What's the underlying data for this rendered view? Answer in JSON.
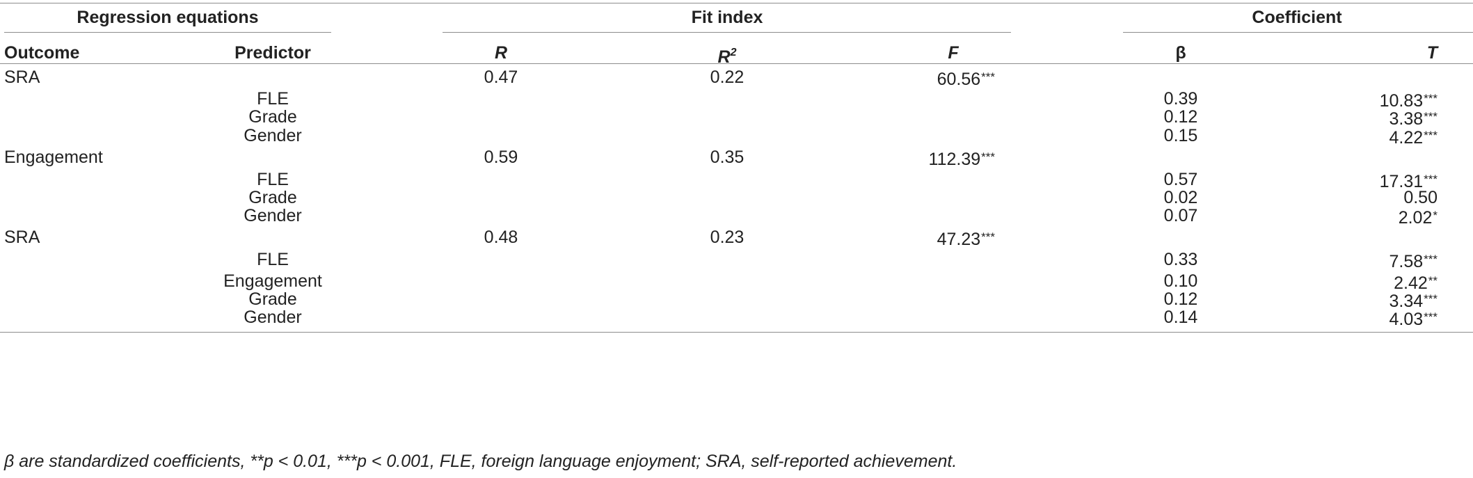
{
  "table": {
    "group_headers": {
      "regression_equations": "Regression equations",
      "fit_index": "Fit index",
      "coefficient": "Coefficient"
    },
    "column_headers": {
      "outcome": "Outcome",
      "predictor": "Predictor",
      "r": "R",
      "r2_base": "R",
      "r2_sup": "2",
      "f": "F",
      "beta": "β",
      "t": "T"
    },
    "rows": [
      {
        "outcome": "SRA",
        "predictor": "",
        "r": "0.47",
        "r2": "0.22",
        "f": "60.56",
        "f_sig": "***",
        "beta": "",
        "t": "",
        "t_sig": ""
      },
      {
        "outcome": "",
        "predictor": "FLE",
        "r": "",
        "r2": "",
        "f": "",
        "f_sig": "",
        "beta": "0.39",
        "t": "10.83",
        "t_sig": "***"
      },
      {
        "outcome": "",
        "predictor": "Grade",
        "r": "",
        "r2": "",
        "f": "",
        "f_sig": "",
        "beta": "0.12",
        "t": "3.38",
        "t_sig": "***"
      },
      {
        "outcome": "",
        "predictor": "Gender",
        "r": "",
        "r2": "",
        "f": "",
        "f_sig": "",
        "beta": "0.15",
        "t": "4.22",
        "t_sig": "***"
      },
      {
        "outcome": "Engagement",
        "predictor": "",
        "r": "0.59",
        "r2": "0.35",
        "f": "112.39",
        "f_sig": "***",
        "beta": "",
        "t": "",
        "t_sig": ""
      },
      {
        "outcome": "",
        "predictor": "FLE",
        "r": "",
        "r2": "",
        "f": "",
        "f_sig": "",
        "beta": "0.57",
        "t": "17.31",
        "t_sig": "***"
      },
      {
        "outcome": "",
        "predictor": "Grade",
        "r": "",
        "r2": "",
        "f": "",
        "f_sig": "",
        "beta": "0.02",
        "t": "0.50",
        "t_sig": ""
      },
      {
        "outcome": "",
        "predictor": "Gender",
        "r": "",
        "r2": "",
        "f": "",
        "f_sig": "",
        "beta": "0.07",
        "t": "2.02",
        "t_sig": "*"
      },
      {
        "outcome": "SRA",
        "predictor": "",
        "r": "0.48",
        "r2": "0.23",
        "f": "47.23",
        "f_sig": "***",
        "beta": "",
        "t": "",
        "t_sig": ""
      },
      {
        "outcome": "",
        "predictor": "FLE",
        "r": "",
        "r2": "",
        "f": "",
        "f_sig": "",
        "beta": "0.33",
        "t": "7.58",
        "t_sig": "***"
      },
      {
        "outcome": "",
        "predictor": "Engagement",
        "r": "",
        "r2": "",
        "f": "",
        "f_sig": "",
        "beta": "0.10",
        "t": "2.42",
        "t_sig": "**"
      },
      {
        "outcome": "",
        "predictor": "Grade",
        "r": "",
        "r2": "",
        "f": "",
        "f_sig": "",
        "beta": "0.12",
        "t": "3.34",
        "t_sig": "***"
      },
      {
        "outcome": "",
        "predictor": "Gender",
        "r": "",
        "r2": "",
        "f": "",
        "f_sig": "",
        "beta": "0.14",
        "t": "4.03",
        "t_sig": "***"
      }
    ],
    "footnote": "β are standardized coefficients, **p < 0.01, ***p < 0.001, FLE, foreign language enjoyment; SRA, self-reported achievement."
  }
}
